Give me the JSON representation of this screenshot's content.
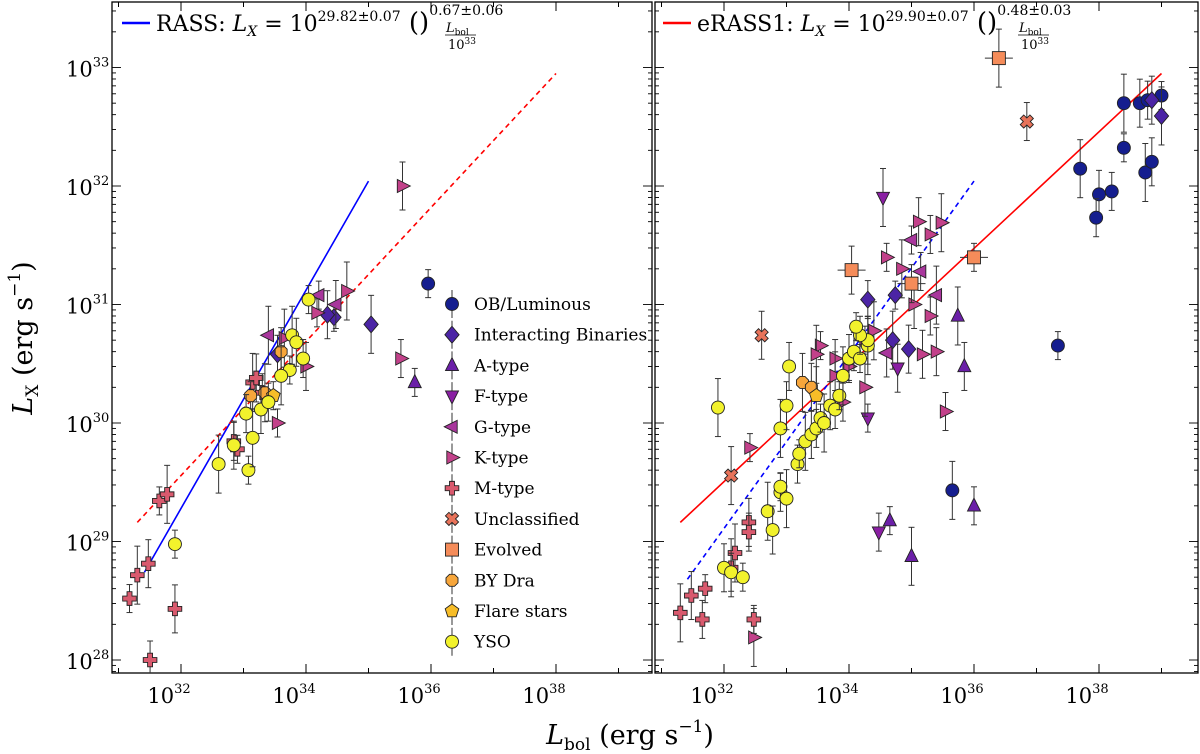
{
  "chart_data": [
    {
      "type": "scatter",
      "panel": "left",
      "xscale": "log",
      "yscale": "log",
      "xlim": [
        1e+31,
        1e+40
      ],
      "ylim": [
        5e+27,
        4e+33
      ],
      "xlabel": "L_bol (erg s^-1)",
      "ylabel": "L_X (erg s^-1)",
      "fit_label": {
        "prefix": "RASS: ",
        "lhs": "L",
        "lhs_sub": "X",
        "eq": " = 10",
        "exp": "29.82±0.07",
        "frac_num": "L",
        "frac_num_sub": "bol",
        "frac_den": "10",
        "frac_den_sup": "33",
        "power": "0.67±0.06"
      },
      "fit_line": {
        "color": "#0000ff",
        "style": "solid",
        "x": [
          2.6e+31,
          1e+35
        ],
        "y": [
          5.5e+28,
          1.1e+32
        ]
      },
      "reference_line": {
        "color": "#ff0000",
        "style": "dashed",
        "x": [
          2e+31,
          1e+38
        ],
        "y": [
          1.45e+29,
          8.9e+32
        ]
      },
      "legend": {
        "location": "right",
        "entries": [
          {
            "label": "OB/Luminous",
            "marker": "circle",
            "color": "#151e8f"
          },
          {
            "label": "Interacting Binaries",
            "marker": "diamond",
            "color": "#4b24a5"
          },
          {
            "label": "A-type",
            "marker": "triangle-up",
            "color": "#6b1fa8"
          },
          {
            "label": "F-type",
            "marker": "triangle-down",
            "color": "#8a1fa3"
          },
          {
            "label": "G-type",
            "marker": "triangle-left",
            "color": "#a8369c"
          },
          {
            "label": "K-type",
            "marker": "triangle-right",
            "color": "#c2418a"
          },
          {
            "label": "M-type",
            "marker": "plus",
            "color": "#d95a6e"
          },
          {
            "label": "Unclassified",
            "marker": "x",
            "color": "#e8735a"
          },
          {
            "label": "Evolved",
            "marker": "square",
            "color": "#f58c5a"
          },
          {
            "label": "BY Dra",
            "marker": "octagon",
            "color": "#f7a63b"
          },
          {
            "label": "Flare stars",
            "marker": "pentagon",
            "color": "#f7bd28"
          },
          {
            "label": "YSO",
            "marker": "circle",
            "color": "#f2f22c"
          }
        ]
      },
      "series": [
        {
          "name": "OB/Luminous",
          "points": [
            [
              9e+35,
              1.5e+31
            ]
          ]
        },
        {
          "name": "Interacting Binaries",
          "points": [
            [
              2.8e+34,
              7.8e+30
            ],
            [
              1.1e+35,
              6.8e+30
            ],
            [
              2.2e+34,
              8.2e+30
            ],
            [
              3.5e+33,
              3.8e+30
            ]
          ]
        },
        {
          "name": "A-type",
          "points": [
            [
              5.5e+35,
              2.2e+30
            ]
          ]
        },
        {
          "name": "F-type",
          "points": []
        },
        {
          "name": "G-type",
          "points": [
            [
              1.6e+34,
              1.2e+31
            ],
            [
              2.5e+33,
              5.5e+30
            ],
            [
              3e+34,
              1e+31
            ]
          ]
        },
        {
          "name": "K-type",
          "points": [
            [
              1.5e+34,
              8.5e+30
            ],
            [
              4.5e+34,
              1.3e+31
            ],
            [
              3.5e+35,
              1e+32
            ],
            [
              3.3e+35,
              3.5e+30
            ],
            [
              3.5e+33,
              1e+30
            ],
            [
              4.5e+33,
              5.2e+30
            ],
            [
              1e+34,
              3e+30
            ]
          ]
        },
        {
          "name": "M-type",
          "points": [
            [
              1.5e+31,
              3.3e+28
            ],
            [
              2e+31,
              5.2e+28
            ],
            [
              3e+31,
              6.5e+28
            ],
            [
              3.2e+31,
              1e+28
            ],
            [
              4.5e+31,
              2.2e+29
            ],
            [
              6e+31,
              2.5e+29
            ],
            [
              8e+31,
              2.7e+28
            ],
            [
              7e+32,
              7e+29
            ],
            [
              8e+32,
              6e+29
            ],
            [
              1.4e+33,
              2.2e+30
            ],
            [
              1.6e+33,
              2.4e+30
            ],
            [
              2e+33,
              1.8e+30
            ]
          ]
        },
        {
          "name": "Unclassified",
          "points": []
        },
        {
          "name": "Evolved",
          "points": []
        },
        {
          "name": "BY Dra",
          "points": [
            [
              1.3e+33,
              1.7e+30
            ],
            [
              2.2e+33,
              1.8e+30
            ],
            [
              4e+33,
              4e+30
            ]
          ]
        },
        {
          "name": "Flare stars",
          "points": [
            [
              3e+33,
              1.7e+30
            ]
          ]
        },
        {
          "name": "YSO",
          "points": [
            [
              8e+31,
              9.5e+28
            ],
            [
              4e+32,
              4.5e+29
            ],
            [
              7e+32,
              6.5e+29
            ],
            [
              1.1e+33,
              1.2e+30
            ],
            [
              1.2e+33,
              4e+29
            ],
            [
              1.4e+33,
              7.5e+29
            ],
            [
              1.9e+33,
              1.3e+30
            ],
            [
              2.5e+33,
              1.5e+30
            ],
            [
              5.5e+33,
              2.8e+30
            ],
            [
              6e+33,
              5.5e+30
            ],
            [
              7e+33,
              4.8e+30
            ],
            [
              9e+33,
              3.5e+30
            ],
            [
              1.1e+34,
              1.1e+31
            ],
            [
              4e+33,
              2.5e+30
            ]
          ]
        }
      ]
    },
    {
      "type": "scatter",
      "panel": "right",
      "xscale": "log",
      "yscale": "log",
      "xlim": [
        1e+31,
        1e+40
      ],
      "ylim": [
        5e+27,
        4e+33
      ],
      "xlabel": "L_bol (erg s^-1)",
      "fit_label": {
        "prefix": "eRASS1: ",
        "lhs": "L",
        "lhs_sub": "X",
        "eq": " = 10",
        "exp": "29.90±0.07",
        "frac_num": "L",
        "frac_num_sub": "bol",
        "frac_den": "10",
        "frac_den_sup": "33",
        "power": "0.48±0.03"
      },
      "fit_line": {
        "color": "#ff0000",
        "style": "solid",
        "x": [
          2e+31,
          1e+39
        ],
        "y": [
          1.45e+29,
          8.9e+32
        ]
      },
      "reference_line": {
        "color": "#0000ff",
        "style": "dashed",
        "x": [
          2.6e+31,
          1e+36
        ],
        "y": [
          4.8e+28,
          1.1e+32
        ]
      },
      "series": [
        {
          "name": "OB/Luminous",
          "points": [
            [
              2.5e+38,
              5e+32
            ],
            [
              4.5e+38,
              5e+32
            ],
            [
              6e+38,
              5.3e+32
            ],
            [
              1e+39,
              5.8e+32
            ],
            [
              5e+37,
              1.4e+32
            ],
            [
              1e+38,
              8.5e+31
            ],
            [
              1.6e+38,
              9e+31
            ],
            [
              2.5e+38,
              2.1e+32
            ],
            [
              5.5e+38,
              1.3e+32
            ],
            [
              7e+38,
              1.6e+32
            ],
            [
              9e+37,
              5.4e+31
            ],
            [
              2.2e+37,
              4.5e+30
            ],
            [
              4.5e+35,
              2.7e+29
            ]
          ]
        },
        {
          "name": "Interacting Binaries",
          "points": [
            [
              1e+39,
              3.9e+32
            ],
            [
              7e+38,
              5.3e+32
            ],
            [
              2e+34,
              1.1e+31
            ],
            [
              5.5e+34,
              1.2e+31
            ],
            [
              5e+34,
              5e+30
            ],
            [
              9e+34,
              4.2e+30
            ]
          ]
        },
        {
          "name": "A-type",
          "points": [
            [
              5.5e+35,
              8e+30
            ],
            [
              7e+35,
              3e+30
            ],
            [
              1e+36,
              2e+29
            ],
            [
              4.5e+34,
              1.5e+29
            ],
            [
              1e+35,
              7.5e+28
            ]
          ]
        },
        {
          "name": "F-type",
          "points": [
            [
              3.5e+34,
              8e+31
            ],
            [
              6e+34,
              2.9e+30
            ],
            [
              3e+34,
              1.2e+29
            ],
            [
              2e+34,
              1.1e+30
            ]
          ]
        },
        {
          "name": "G-type",
          "points": [
            [
              2.5e+35,
              1.2e+31
            ],
            [
              4e+34,
              3.9e+30
            ],
            [
              1.4e+35,
              1.9e+31
            ],
            [
              1e+35,
              3.5e+31
            ]
          ]
        },
        {
          "name": "K-type",
          "points": [
            [
              3e+35,
              4.9e+31
            ],
            [
              1.3e+35,
              5e+31
            ],
            [
              2e+35,
              3.9e+31
            ],
            [
              4e+34,
              2.5e+31
            ],
            [
              7e+34,
              2e+31
            ],
            [
              1.1e+35,
              1e+31
            ],
            [
              2e+35,
              8e+30
            ],
            [
              1.8e+34,
              5e+30
            ],
            [
              2.5e+34,
              6e+30
            ],
            [
              1.5e+35,
              3.8e+30
            ],
            [
              3.5e+35,
              1.25e+30
            ],
            [
              3.5e+33,
              4.5e+30
            ],
            [
              3e+33,
              3.8e+30
            ],
            [
              2.5e+35,
              4e+30
            ],
            [
              6e+33,
              3.5e+30
            ],
            [
              1e+34,
              3e+30
            ],
            [
              1.8e+34,
              2e+30
            ],
            [
              6e+33,
              2.5e+30
            ],
            [
              8e+33,
              1.5e+30
            ],
            [
              2.6e+32,
              6.2e+29
            ],
            [
              3e+32,
              1.55e+28
            ]
          ]
        },
        {
          "name": "M-type",
          "points": [
            [
              2e+31,
              2.5e+28
            ],
            [
              3e+31,
              3.5e+28
            ],
            [
              4.5e+31,
              2.2e+28
            ],
            [
              5e+31,
              4e+28
            ],
            [
              1.5e+32,
              8e+28
            ],
            [
              2.5e+32,
              1.45e+29
            ],
            [
              2.5e+32,
              1.2e+29
            ],
            [
              3e+32,
              2.2e+28
            ],
            [
              1.3e+32,
              6e+28
            ]
          ]
        },
        {
          "name": "Unclassified",
          "points": [
            [
              1.3e+32,
              3.6e+29
            ],
            [
              4e+32,
              5.5e+30
            ],
            [
              7e+36,
              3.5e+32
            ]
          ]
        },
        {
          "name": "Evolved",
          "points": [
            [
              2.5e+36,
              1.2e+33
            ],
            [
              1.1e+34,
              1.95e+31
            ],
            [
              1e+35,
              1.5e+31
            ],
            [
              1e+36,
              2.5e+31
            ]
          ]
        },
        {
          "name": "BY Dra",
          "points": [
            [
              1.8e+33,
              2.2e+30
            ],
            [
              2.5e+33,
              2e+30
            ]
          ]
        },
        {
          "name": "Flare stars",
          "points": [
            [
              3e+33,
              1.7e+30
            ]
          ]
        },
        {
          "name": "YSO",
          "points": [
            [
              8e+31,
              1.35e+30
            ],
            [
              1e+32,
              6e+28
            ],
            [
              1.3e+32,
              5.5e+28
            ],
            [
              2e+32,
              5e+28
            ],
            [
              5e+32,
              1.8e+29
            ],
            [
              6e+32,
              1.25e+29
            ],
            [
              8e+32,
              2.6e+29
            ],
            [
              8e+32,
              2.9e+29
            ],
            [
              1e+33,
              2.3e+29
            ],
            [
              1.1e+33,
              3e+30
            ],
            [
              1.5e+33,
              4.5e+29
            ],
            [
              1.6e+33,
              5.5e+29
            ],
            [
              2e+33,
              7e+29
            ],
            [
              2.5e+33,
              8e+29
            ],
            [
              3e+33,
              9e+29
            ],
            [
              3.5e+33,
              1.1e+30
            ],
            [
              4e+33,
              1e+30
            ],
            [
              5e+33,
              1.4e+30
            ],
            [
              6e+33,
              1.3e+30
            ],
            [
              7e+33,
              1.7e+30
            ],
            [
              8e+33,
              2.5e+30
            ],
            [
              1e+34,
              3.5e+30
            ],
            [
              1.2e+34,
              4e+30
            ],
            [
              1.5e+34,
              3.5e+30
            ],
            [
              2e+34,
              4.5e+30
            ],
            [
              2e+34,
              5e+30
            ],
            [
              1.5e+34,
              5.5e+30
            ],
            [
              1.3e+34,
              6.5e+30
            ],
            [
              8e+32,
              9e+29
            ],
            [
              1e+33,
              1.4e+30
            ]
          ]
        }
      ]
    }
  ]
}
